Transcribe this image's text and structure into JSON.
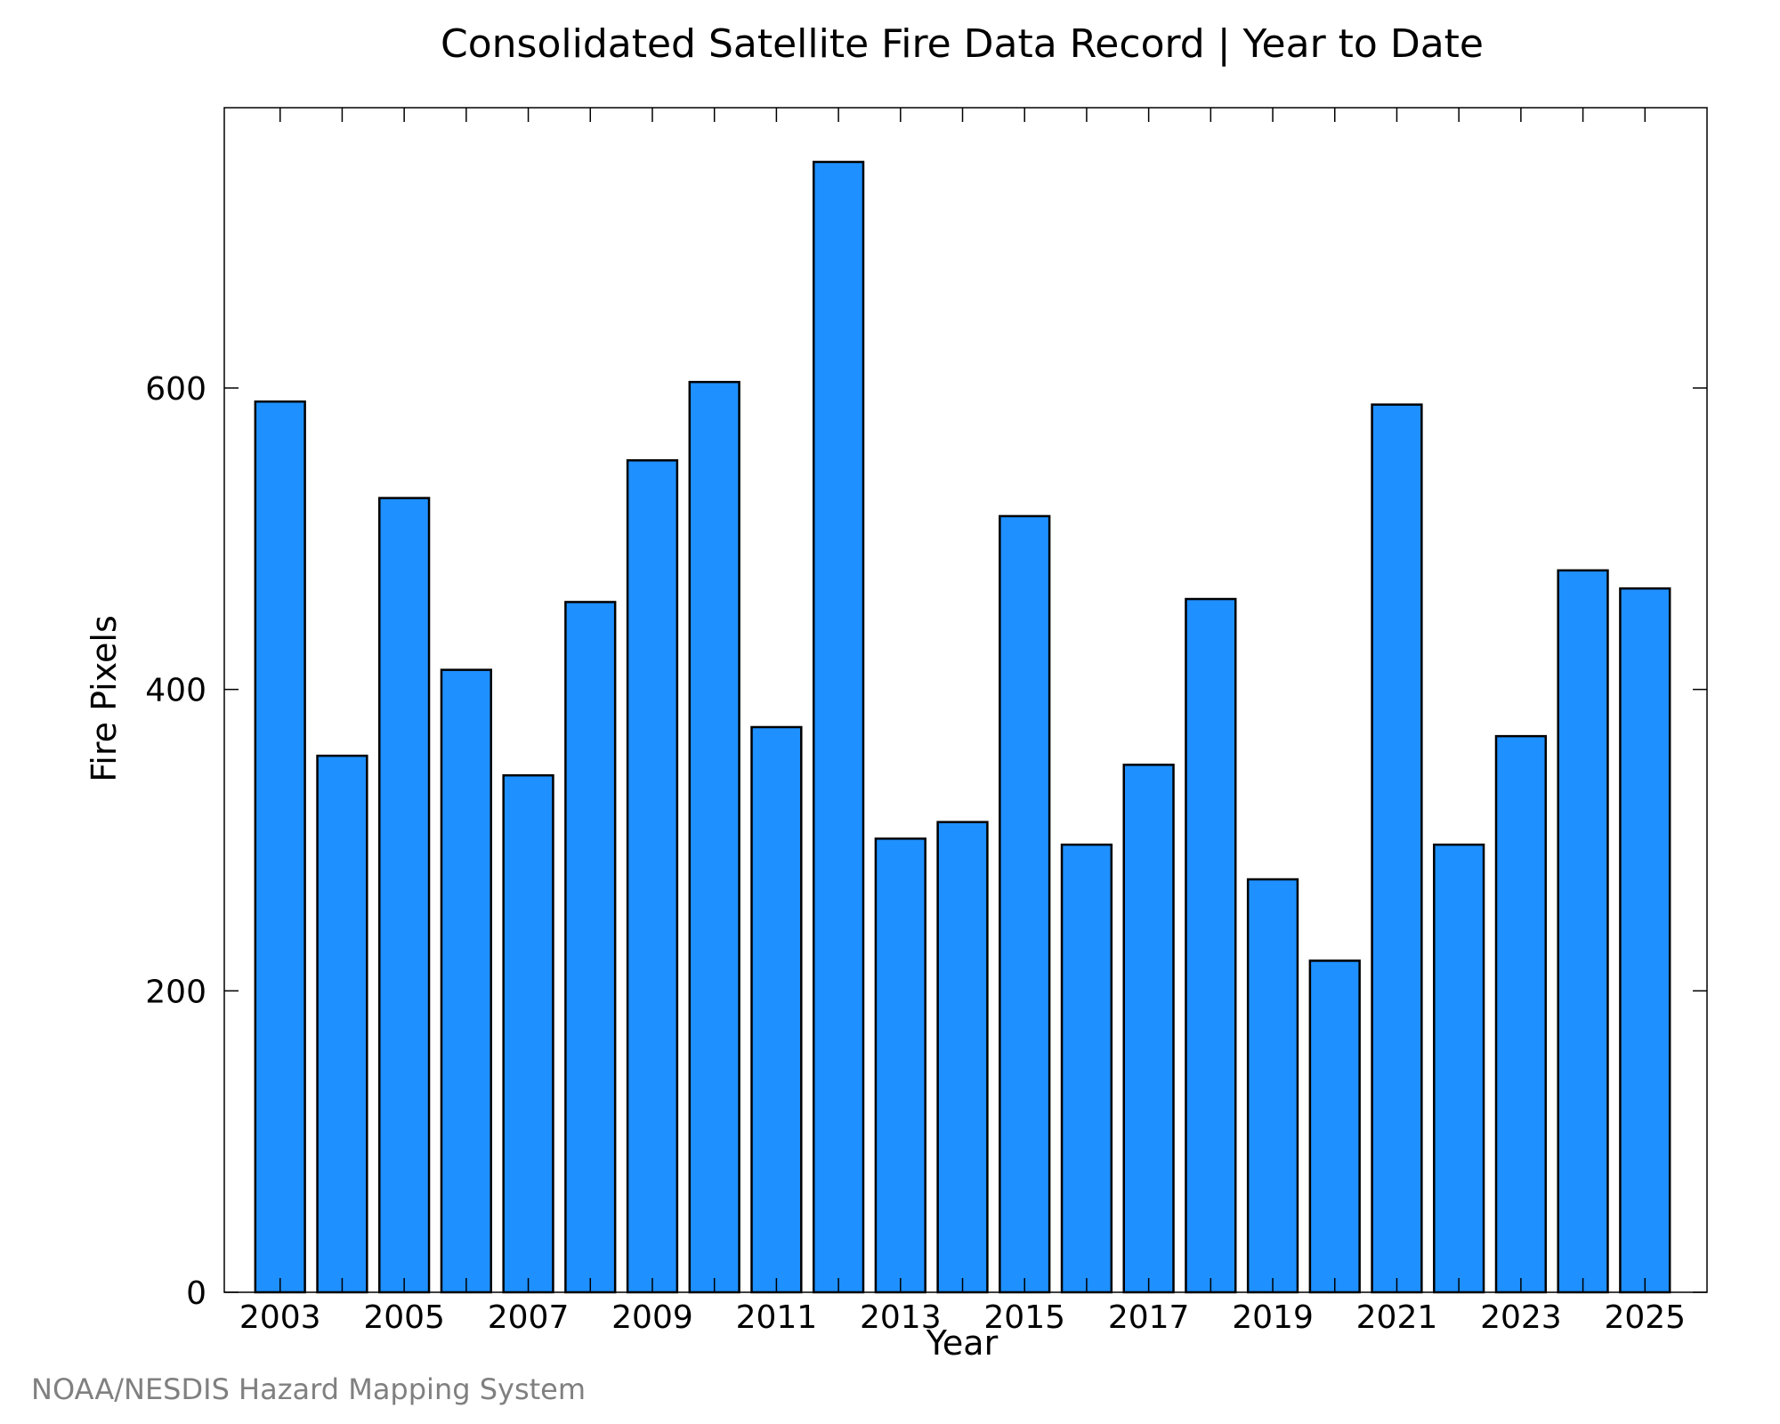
{
  "chart_data": {
    "type": "bar",
    "title": "Consolidated Satellite Fire Data Record | Year to Date",
    "xlabel": "Year",
    "ylabel": "Fire Pixels",
    "credit": "NOAA/NESDIS Hazard Mapping System",
    "categories": [
      2003,
      2004,
      2005,
      2006,
      2007,
      2008,
      2009,
      2010,
      2011,
      2012,
      2013,
      2014,
      2015,
      2016,
      2017,
      2018,
      2019,
      2020,
      2021,
      2022,
      2023,
      2024,
      2025
    ],
    "values": [
      591,
      356,
      527,
      413,
      343,
      458,
      552,
      604,
      375,
      750,
      301,
      312,
      515,
      297,
      350,
      460,
      274,
      220,
      589,
      297,
      369,
      479,
      467
    ],
    "x_tick_labels": [
      "2003",
      "2005",
      "2007",
      "2009",
      "2011",
      "2013",
      "2015",
      "2017",
      "2019",
      "2021",
      "2023",
      "2025"
    ],
    "y_ticks": [
      0,
      200,
      400,
      600
    ],
    "y_tick_labels": [
      "0",
      "200",
      "400",
      "600"
    ],
    "xlim": [
      2002.1,
      2026.0
    ],
    "ylim": [
      0,
      786
    ],
    "grid": false,
    "legend": "none",
    "colors": {
      "bar_fill": "#1e90ff",
      "bar_edge": "#000000",
      "axis": "#000000",
      "credit": "#808080"
    }
  }
}
